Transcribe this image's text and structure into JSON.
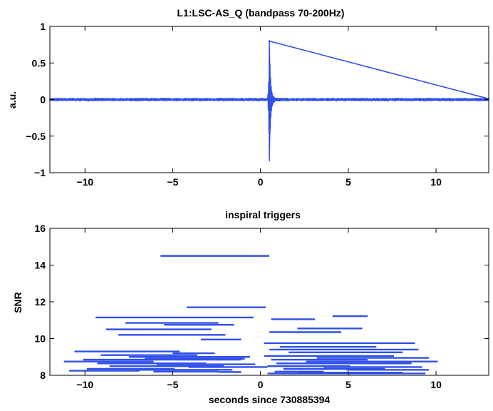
{
  "chart_data": [
    {
      "type": "line",
      "title": "L1:LSC-AS_Q (bandpass 70-200Hz)",
      "xlabel": "",
      "ylabel": "a.u.",
      "xlim": [
        -12,
        13
      ],
      "ylim": [
        -1,
        1
      ],
      "x_ticks": [
        -10,
        -5,
        0,
        5,
        10
      ],
      "y_ticks": [
        -1,
        -0.5,
        0,
        0.5,
        1
      ],
      "x_tick_labels": [
        "−10",
        "−5",
        "0",
        "5",
        "10"
      ],
      "y_tick_labels": [
        "−1",
        "−0.5",
        "0",
        "0.5",
        "1"
      ],
      "grid": false,
      "series_color": "#3050e8",
      "baseline_amplitude": 0.012,
      "burst": {
        "t": 0.5,
        "peak_max": 0.8,
        "peak_min": -0.84
      }
    },
    {
      "type": "segments",
      "title": "inspiral triggers",
      "xlabel": "seconds since 730885394",
      "ylabel": "SNR",
      "xlim": [
        -12,
        13
      ],
      "ylim": [
        8,
        16
      ],
      "x_ticks": [
        -10,
        -5,
        0,
        5,
        10
      ],
      "y_ticks": [
        8,
        10,
        12,
        14,
        16
      ],
      "x_tick_labels": [
        "−10",
        "−5",
        "0",
        "5",
        "10"
      ],
      "y_tick_labels": [
        "8",
        "10",
        "12",
        "14",
        "16"
      ],
      "grid": false,
      "series_color": "#3050e8",
      "segments": [
        {
          "x0": -5.7,
          "x1": 0.5,
          "snr": 14.5
        },
        {
          "x0": -4.2,
          "x1": 0.3,
          "snr": 11.7
        },
        {
          "x0": -9.4,
          "x1": -0.4,
          "snr": 11.15
        },
        {
          "x0": 0.6,
          "x1": 3.1,
          "snr": 11.05
        },
        {
          "x0": 4.1,
          "x1": 6.1,
          "snr": 11.22
        },
        {
          "x0": -7.7,
          "x1": -2.4,
          "snr": 10.85
        },
        {
          "x0": -8.8,
          "x1": -2.8,
          "snr": 10.5
        },
        {
          "x0": -5.5,
          "x1": -1.5,
          "snr": 10.75
        },
        {
          "x0": 0.5,
          "x1": 4.6,
          "snr": 10.35
        },
        {
          "x0": 2.1,
          "x1": 5.8,
          "snr": 10.55
        },
        {
          "x0": -8.1,
          "x1": -2.0,
          "snr": 10.2
        },
        {
          "x0": -3.4,
          "x1": -1.1,
          "snr": 9.95
        },
        {
          "x0": 0.2,
          "x1": 8.8,
          "snr": 9.75
        },
        {
          "x0": 1.1,
          "x1": 6.6,
          "snr": 9.55
        },
        {
          "x0": 0.5,
          "x1": 9.0,
          "snr": 9.4
        },
        {
          "x0": 1.6,
          "x1": 8.1,
          "snr": 9.25
        },
        {
          "x0": -10.6,
          "x1": -4.6,
          "snr": 9.3
        },
        {
          "x0": -5.0,
          "x1": -2.6,
          "snr": 9.2
        },
        {
          "x0": -9.1,
          "x1": -3.6,
          "snr": 9.1
        },
        {
          "x0": -7.5,
          "x1": -0.6,
          "snr": 9.0
        },
        {
          "x0": 0.2,
          "x1": 7.6,
          "snr": 9.05
        },
        {
          "x0": 3.2,
          "x1": 9.6,
          "snr": 8.95
        },
        {
          "x0": -10.1,
          "x1": -1.1,
          "snr": 8.85
        },
        {
          "x0": -11.2,
          "x1": -6.1,
          "snr": 8.75
        },
        {
          "x0": -6.6,
          "x1": -0.9,
          "snr": 8.9
        },
        {
          "x0": 0.6,
          "x1": 6.1,
          "snr": 8.85
        },
        {
          "x0": 2.6,
          "x1": 10.1,
          "snr": 8.75
        },
        {
          "x0": -9.3,
          "x1": -3.1,
          "snr": 8.65
        },
        {
          "x0": -5.9,
          "x1": -0.3,
          "snr": 8.6
        },
        {
          "x0": 0.9,
          "x1": 8.6,
          "snr": 8.65
        },
        {
          "x0": -8.6,
          "x1": -2.1,
          "snr": 8.5
        },
        {
          "x0": -4.1,
          "x1": 0.4,
          "snr": 8.45
        },
        {
          "x0": 0.4,
          "x1": 5.1,
          "snr": 8.5
        },
        {
          "x0": 3.6,
          "x1": 9.2,
          "snr": 8.45
        },
        {
          "x0": -9.9,
          "x1": -4.9,
          "snr": 8.35
        },
        {
          "x0": -7.1,
          "x1": -1.6,
          "snr": 8.3
        },
        {
          "x0": 1.3,
          "x1": 7.1,
          "snr": 8.35
        },
        {
          "x0": 4.9,
          "x1": 9.6,
          "snr": 8.3
        },
        {
          "x0": -10.9,
          "x1": -6.9,
          "snr": 8.25
        },
        {
          "x0": -6.1,
          "x1": -2.4,
          "snr": 8.2
        },
        {
          "x0": -2.4,
          "x1": -1.1,
          "snr": 8.18
        },
        {
          "x0": 0.8,
          "x1": 3.6,
          "snr": 8.2
        },
        {
          "x0": 2.1,
          "x1": 8.1,
          "snr": 8.15
        },
        {
          "x0": 0.4,
          "x1": 9.4,
          "snr": 8.1
        }
      ]
    }
  ]
}
